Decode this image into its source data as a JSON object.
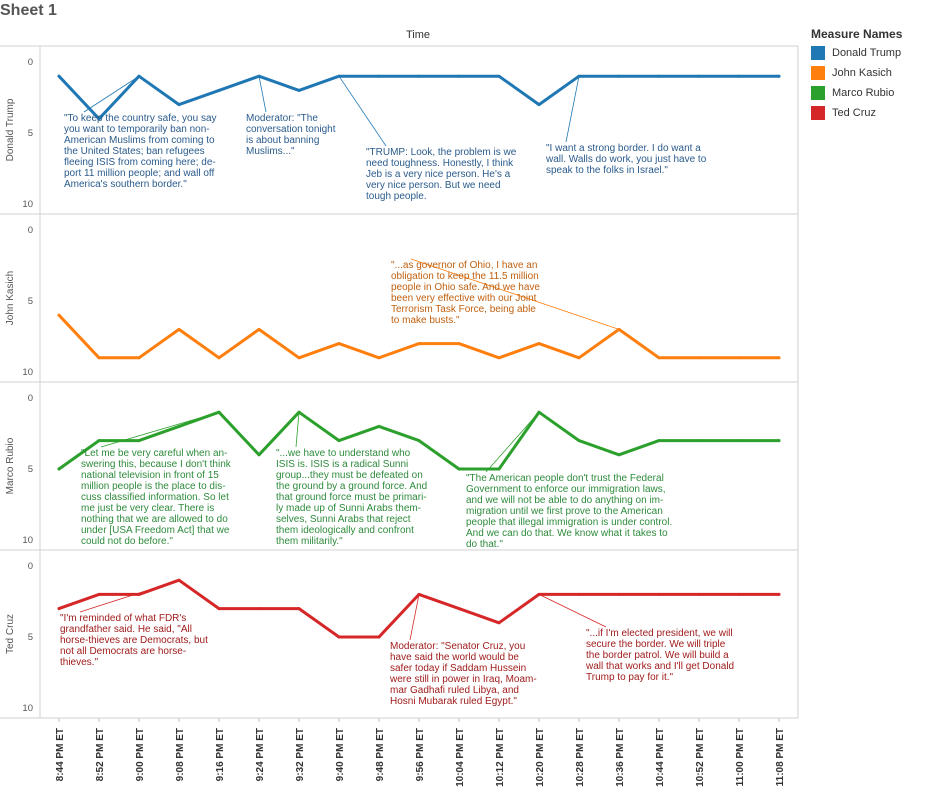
{
  "sheet_title": "Sheet 1",
  "chart_data": {
    "type": "line",
    "xlabel": "Time",
    "categories": [
      "8:44 PM ET",
      "8:52 PM ET",
      "9:00 PM ET",
      "9:08 PM ET",
      "9:16 PM ET",
      "9:24 PM ET",
      "9:32 PM ET",
      "9:40 PM ET",
      "9:48 PM ET",
      "9:56 PM ET",
      "10:04 PM ET",
      "10:12 PM ET",
      "10:20 PM ET",
      "10:28 PM ET",
      "10:36 PM ET",
      "10:44 PM ET",
      "10:52 PM ET",
      "11:00 PM ET",
      "11:08 PM ET"
    ],
    "ylim": [
      0,
      10
    ],
    "yticks": [
      "0",
      "5",
      "10"
    ],
    "legend": {
      "title": "Measure Names",
      "position": "right",
      "items": [
        {
          "name": "Donald Trump",
          "color": "#1f77b4"
        },
        {
          "name": "John Kasich",
          "color": "#ff7f0e"
        },
        {
          "name": "Marco Rubio",
          "color": "#2ca02c"
        },
        {
          "name": "Ted Cruz",
          "color": "#d62728"
        }
      ]
    },
    "panels": [
      {
        "label": "Donald Trump",
        "color": "#1f77b4",
        "text_color": "#2a5b8c",
        "x": [
          0,
          1,
          2,
          3,
          4,
          5,
          6,
          7,
          8,
          9,
          10,
          11,
          12,
          13,
          14,
          15,
          16,
          17,
          18
        ],
        "values": [
          1,
          4,
          1,
          3,
          2,
          1,
          2,
          1,
          1,
          1,
          1,
          1,
          3,
          1,
          1,
          1,
          1,
          1,
          1
        ],
        "annotations": [
          {
            "point": 2,
            "lines": [
              "\"To keep the country safe, you say",
              "you want to temporarily ban non-",
              "American Muslims from coming to",
              "the United States; ban refugees",
              "fleeing ISIS from coming here; de-",
              "port 11 million people; and wall off",
              "America's southern border.\""
            ]
          },
          {
            "point": 5,
            "lines": [
              "Moderator: \"The",
              "conversation tonight",
              "is about banning",
              "Muslims...\""
            ]
          },
          {
            "point": 7,
            "lines": [
              "\"TRUMP: Look, the problem is we",
              "need toughness. Honestly, I think",
              "Jeb is a very nice person. He's a",
              "very nice person. But we need",
              "tough people."
            ]
          },
          {
            "point": 13,
            "lines": [
              "\"I want a strong border. I do want a",
              "wall. Walls do work, you just have to",
              "speak to the folks in Israel.\""
            ]
          }
        ]
      },
      {
        "label": "John Kasich",
        "color": "#ff7f0e",
        "text_color": "#c06010",
        "x": [
          0,
          1,
          2,
          3,
          4,
          5,
          6,
          7,
          8,
          9,
          10,
          11,
          12,
          13,
          14,
          15,
          16,
          17,
          18
        ],
        "values": [
          6,
          9,
          9,
          7,
          9,
          7,
          9,
          8,
          9,
          8,
          8,
          9,
          8,
          9,
          7,
          9,
          9,
          9,
          9
        ],
        "annotations": [
          {
            "point": 14,
            "lines": [
              "\"...as governor of Ohio, I have an",
              "obligation to keep the 11.5 million",
              "people in Ohio safe. And we have",
              "been very effective with our Joint",
              "Terrorism Task Force, being able",
              "to make busts.\""
            ]
          }
        ]
      },
      {
        "label": "Marco Rubio",
        "color": "#2ca02c",
        "text_color": "#2e8b3c",
        "x": [
          0,
          1,
          2,
          3,
          4,
          5,
          6,
          7,
          8,
          9,
          10,
          11,
          12,
          13,
          14,
          15,
          16,
          17,
          18
        ],
        "values": [
          5,
          3,
          3,
          2,
          1,
          4,
          1,
          3,
          2,
          3,
          5,
          5,
          1,
          3,
          4,
          3,
          3,
          3,
          3
        ],
        "annotations": [
          {
            "point": 4,
            "lines": [
              "\"Let me be very careful when an-",
              "swering this, because I don't think",
              "national television in front of 15",
              "million people is the place to dis-",
              "cuss classified information. So let",
              "me just be very clear. There is",
              "nothing that we are allowed to do",
              "under [USA Freedom Act] that we",
              "could not do before.\""
            ]
          },
          {
            "point": 6,
            "lines": [
              "\"...we have to understand who",
              "ISIS is. ISIS is a radical Sunni",
              "group...they must be defeated on",
              "the ground by a ground force. And",
              "that ground force must be primari-",
              "ly made up of Sunni Arabs them-",
              "selves, Sunni Arabs that reject",
              "them ideologically and confront",
              "them militarily.\""
            ]
          },
          {
            "point": 12,
            "lines": [
              "\"The American people don't trust the Federal",
              "Government to enforce our immigration laws,",
              "and we will not be able to do anything on im-",
              "migration until we first prove to the American",
              "people that illegal immigration is under control.",
              "And we can do that. We know what it takes to",
              "do that.\""
            ]
          }
        ]
      },
      {
        "label": "Ted Cruz",
        "color": "#d62728",
        "text_color": "#a01c1c",
        "x": [
          0,
          1,
          2,
          3,
          4,
          5,
          6,
          7,
          8,
          9,
          10,
          11,
          12,
          13,
          14,
          15,
          16,
          17,
          18
        ],
        "values": [
          3,
          2,
          2,
          1,
          3,
          3,
          3,
          5,
          5,
          2,
          3,
          4,
          2,
          2,
          2,
          2,
          2,
          2,
          2
        ],
        "annotations": [
          {
            "point": 3,
            "lines": [
              "\"I'm reminded of what FDR's",
              "grandfather said. He said, \"All",
              "horse-thieves are Democrats, but",
              "not all Democrats are horse-",
              "thieves.\""
            ]
          },
          {
            "point": 9,
            "lines": [
              "Moderator: \"Senator Cruz, you",
              "have said the world would be",
              "safer today if Saddam Hussein",
              "were still in power in Iraq, Moam-",
              "mar Gadhafi ruled Libya, and",
              "Hosni Mubarak ruled Egypt.\""
            ]
          },
          {
            "point": 12,
            "lines": [
              "\"...if I'm elected president, we will",
              "secure the border. We will triple",
              "the border patrol. We will build a",
              "wall that works and I'll get Donald",
              "Trump to pay for it.\""
            ]
          }
        ]
      }
    ]
  }
}
